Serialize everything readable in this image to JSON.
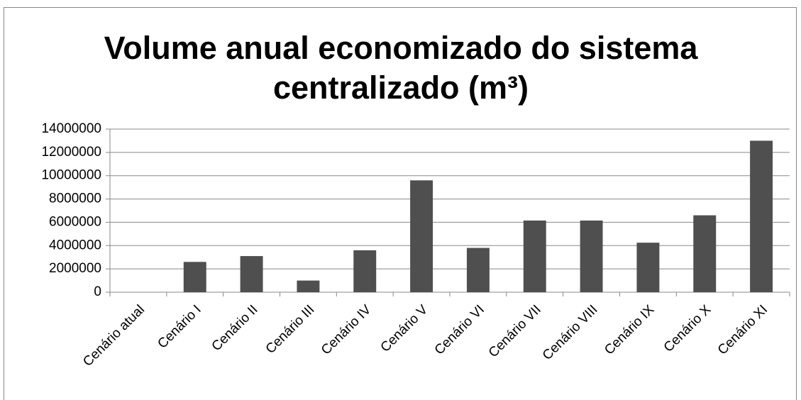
{
  "chart_data": {
    "type": "bar",
    "title": "Volume anual economizado do sistema centralizado (m³)",
    "categories": [
      "Cenário atual",
      "Cenário I",
      "Cenário II",
      "Cenário III",
      "Cenário IV",
      "Cenário V",
      "Cenário VI",
      "Cenário VII",
      "Cenário VIII",
      "Cenário IX",
      "Cenário X",
      "Cenário XI"
    ],
    "values": [
      0,
      2600000,
      3100000,
      1000000,
      3600000,
      9600000,
      3800000,
      6150000,
      6150000,
      4250000,
      6600000,
      13000000
    ],
    "color": "#4f4f4f",
    "ylim": [
      0,
      14000000
    ],
    "yticks": [
      0,
      2000000,
      4000000,
      6000000,
      8000000,
      10000000,
      12000000,
      14000000
    ],
    "grid": true
  }
}
